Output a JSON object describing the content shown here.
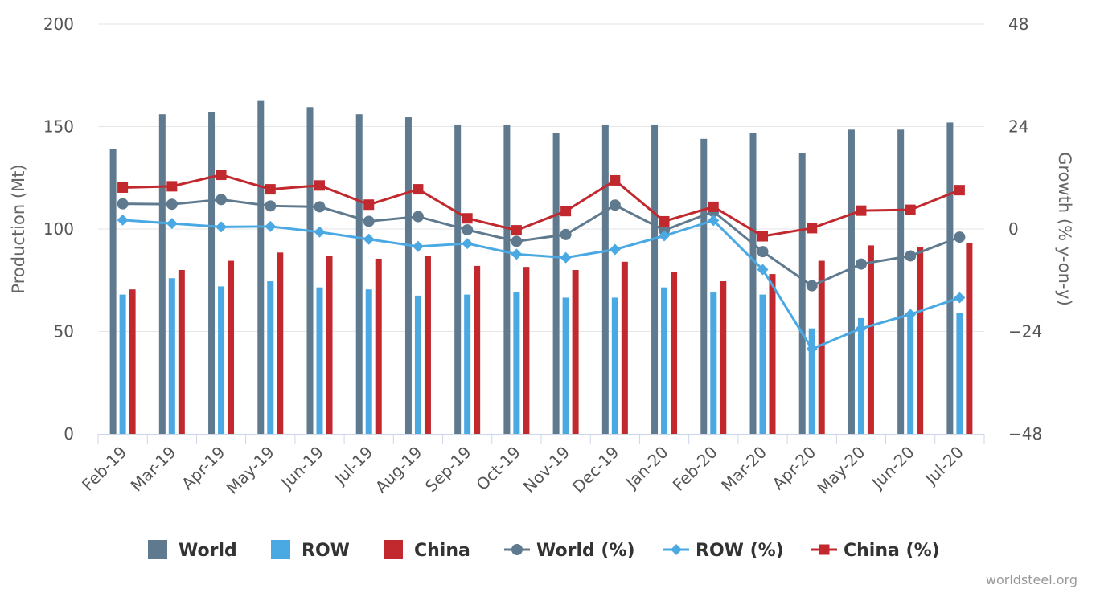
{
  "chart_data": {
    "type": "bar",
    "categories": [
      "Feb-19",
      "Mar-19",
      "Apr-19",
      "May-19",
      "Jun-19",
      "Jul-19",
      "Aug-19",
      "Sep-19",
      "Oct-19",
      "Nov-19",
      "Dec-19",
      "Jan-20",
      "Feb-20",
      "Mar-20",
      "Apr-20",
      "May-20",
      "Jun-20",
      "Jul-20"
    ],
    "left_axis": {
      "label": "Production (Mt)",
      "range": [
        0,
        200
      ],
      "ticks": [
        "0",
        "50",
        "100",
        "150",
        "200"
      ]
    },
    "right_axis": {
      "label": "Growth (% y-on-y)",
      "range": [
        -48,
        48
      ],
      "ticks": [
        "−48",
        "−24",
        "0",
        "24",
        "48"
      ]
    },
    "grid": true,
    "legend_position": "bottom",
    "series": [
      {
        "name": "World",
        "type": "bar",
        "axis": "left",
        "color": "#5f7a8e",
        "values": [
          139,
          156,
          157,
          162.5,
          159.5,
          156,
          154.5,
          151,
          151,
          147,
          151,
          151,
          144,
          147,
          137,
          148.5,
          148.5,
          152
        ]
      },
      {
        "name": "ROW",
        "type": "bar",
        "axis": "left",
        "color": "#4aa9e3",
        "values": [
          68,
          76,
          72,
          74.5,
          71.5,
          70.5,
          67.5,
          68,
          69,
          66.5,
          66.5,
          71.5,
          69,
          68,
          51.5,
          56.5,
          57.5,
          59
        ]
      },
      {
        "name": "China",
        "type": "bar",
        "axis": "left",
        "color": "#c1292e",
        "values": [
          70.5,
          80,
          84.5,
          88.5,
          87,
          85.5,
          87,
          82,
          81.5,
          80,
          84,
          79,
          74.5,
          78,
          84.5,
          92,
          91,
          93
        ]
      },
      {
        "name": "World (%)",
        "type": "line",
        "axis": "right",
        "marker": "circle",
        "color": "#5f7a8e",
        "values": [
          5.9,
          5.8,
          6.9,
          5.4,
          5.2,
          1.8,
          2.9,
          -0.2,
          -2.9,
          -1.3,
          5.6,
          -0.3,
          4.1,
          -5.3,
          -13.3,
          -8.2,
          -6.3,
          -1.9
        ]
      },
      {
        "name": "ROW (%)",
        "type": "line",
        "axis": "right",
        "marker": "diamond",
        "color": "#4aa9e3",
        "values": [
          2.1,
          1.3,
          0.5,
          0.6,
          -0.7,
          -2.4,
          -4.1,
          -3.4,
          -5.9,
          -6.7,
          -4.8,
          -1.6,
          2.0,
          -9.5,
          -28.1,
          -23.3,
          -20.0,
          -16.1
        ]
      },
      {
        "name": "China (%)",
        "type": "line",
        "axis": "right",
        "marker": "square",
        "color": "#c1292e",
        "values": [
          9.7,
          10.0,
          12.7,
          9.3,
          10.2,
          5.7,
          9.3,
          2.5,
          -0.3,
          4.2,
          11.4,
          1.8,
          5.2,
          -1.7,
          0.2,
          4.3,
          4.5,
          9.1
        ]
      }
    ]
  },
  "credit": "worldsteel.org"
}
